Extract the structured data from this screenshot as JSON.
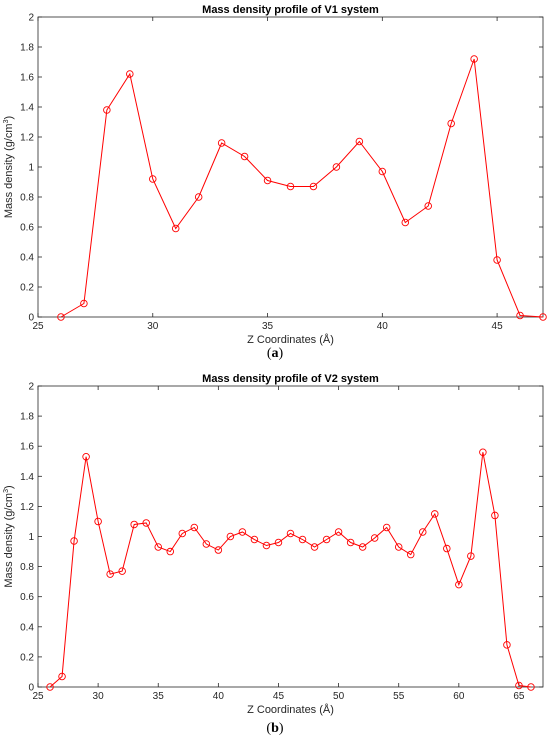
{
  "colors": {
    "series": "#ff0000",
    "axis": "#262626",
    "text": "#262626"
  },
  "chart_data": [
    {
      "type": "line",
      "panel_label": "a",
      "title": "Mass density profile of V1 system",
      "xlabel": "Z Coordinates (Å)",
      "ylabel_main": "Mass density  (g/cm",
      "ylabel_sup": "3",
      "ylabel_end": ")",
      "xlim": [
        25,
        47
      ],
      "ylim": [
        0,
        2
      ],
      "xticks": [
        25,
        30,
        35,
        40,
        45
      ],
      "yticks": [
        0,
        0.2,
        0.4,
        0.6,
        0.8,
        1,
        1.2,
        1.4,
        1.6,
        1.8,
        2
      ],
      "marker": "circle",
      "x": [
        26,
        27,
        28,
        29,
        30,
        31,
        32,
        33,
        34,
        35,
        36,
        37,
        38,
        39,
        40,
        41,
        42,
        43,
        44,
        45,
        46,
        47
      ],
      "y": [
        0.0,
        0.09,
        1.38,
        1.62,
        0.92,
        0.59,
        0.8,
        1.16,
        1.07,
        0.91,
        0.87,
        0.87,
        1.0,
        1.17,
        0.97,
        0.63,
        0.74,
        1.29,
        1.72,
        0.38,
        0.01,
        0.0
      ]
    },
    {
      "type": "line",
      "panel_label": "b",
      "title": "Mass density profile of V2 system",
      "xlabel": "Z Coordinates (Å)",
      "ylabel_main": "Mass density  (g/cm",
      "ylabel_sup": "3",
      "ylabel_end": ")",
      "xlim": [
        25,
        67
      ],
      "ylim": [
        0,
        2
      ],
      "xticks": [
        25,
        30,
        35,
        40,
        45,
        50,
        55,
        60,
        65
      ],
      "yticks": [
        0,
        0.2,
        0.4,
        0.6,
        0.8,
        1,
        1.2,
        1.4,
        1.6,
        1.8,
        2
      ],
      "marker": "circle",
      "x": [
        26,
        27,
        28,
        29,
        30,
        31,
        32,
        33,
        34,
        35,
        36,
        37,
        38,
        39,
        40,
        41,
        42,
        43,
        44,
        45,
        46,
        47,
        48,
        49,
        50,
        51,
        52,
        53,
        54,
        55,
        56,
        57,
        58,
        59,
        60,
        61,
        62,
        63,
        64,
        65,
        66
      ],
      "y": [
        0.0,
        0.07,
        0.97,
        1.53,
        1.1,
        0.75,
        0.77,
        1.08,
        1.09,
        0.93,
        0.9,
        1.02,
        1.06,
        0.95,
        0.91,
        1.0,
        1.03,
        0.98,
        0.94,
        0.96,
        1.02,
        0.98,
        0.93,
        0.98,
        1.03,
        0.96,
        0.93,
        0.99,
        1.06,
        0.93,
        0.88,
        1.03,
        1.15,
        0.92,
        0.68,
        0.87,
        1.56,
        1.14,
        0.28,
        0.01,
        0.0
      ]
    }
  ]
}
